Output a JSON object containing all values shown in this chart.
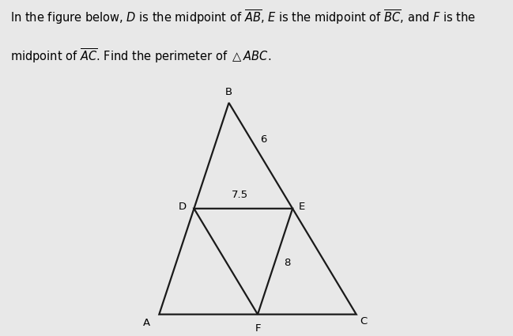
{
  "background_color": "#e8e8e8",
  "triangle_color": "#1a1a1a",
  "line_width": 1.6,
  "A": [
    0.18,
    0.0
  ],
  "B": [
    0.47,
    0.88
  ],
  "C": [
    1.0,
    0.0
  ],
  "label_A": "A",
  "label_B": "B",
  "label_C": "C",
  "label_D": "D",
  "label_E": "E",
  "label_F": "F",
  "label_6": "6",
  "label_75": "7.5",
  "label_8": "8",
  "font_size_labels": 9.5,
  "font_size_numbers": 9.5,
  "font_size_title": 10.5,
  "title_line1": "In the figure below, ",
  "title_AB": "AB",
  "title_mid1": ", E is the midpoint of ",
  "title_BC": "BC",
  "title_mid2": ", and F is the",
  "title_line2a": "midpoint of ",
  "title_AC": "AC",
  "title_line2b": ". Find the perimeter of △ABC."
}
